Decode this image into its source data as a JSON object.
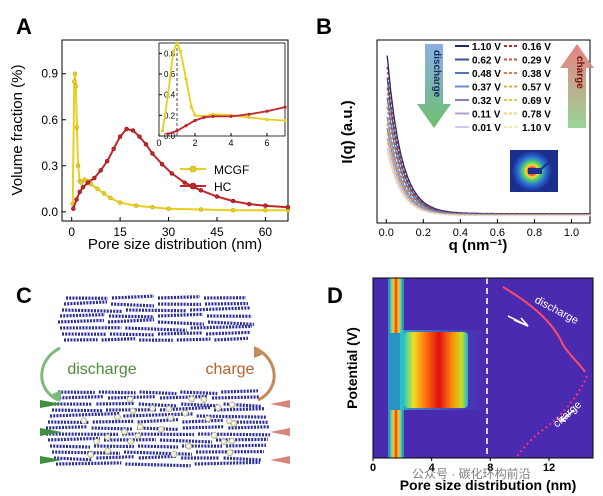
{
  "panels": {
    "A": {
      "letter": "A",
      "ylabel": "Volume fraction (%)",
      "xlabel": "Pore size distribution (nm)",
      "legend": [
        {
          "name": "MCGF",
          "color": "#e8cf1e"
        },
        {
          "name": "HC",
          "color": "#c0282c"
        }
      ],
      "inset": {
        "xticks": [
          "0",
          "2",
          "4",
          "6"
        ],
        "yticks": [
          "0.0",
          "0.2",
          "0.4",
          "0.6",
          "0.8"
        ]
      }
    },
    "B": {
      "letter": "B",
      "ylabel": "I(q) (a.u.)",
      "xlabel": "q (nm⁻¹)",
      "discharge_label": "discharge",
      "charge_label": "charge",
      "discharge_voltages": [
        "1.10 V",
        "0.62 V",
        "0.48 V",
        "0.37 V",
        "0.32 V",
        "0.11 V",
        "0.01 V"
      ],
      "charge_voltages": [
        "0.16 V",
        "0.29 V",
        "0.38 V",
        "0.57 V",
        "0.69 V",
        "0.78 V",
        "1.10 V"
      ],
      "discharge_colors": [
        "#1a2a6c",
        "#2f5597",
        "#4a78b8",
        "#6b8fc8",
        "#8c7dc0",
        "#b79dd6",
        "#d7c8ea"
      ],
      "charge_colors": [
        "#c0282c",
        "#d2533a",
        "#e07d3f",
        "#e8a443",
        "#e8c54a",
        "#eed878",
        "#f2e6a8"
      ]
    },
    "C": {
      "letter": "C",
      "discharge_label": "discharge",
      "charge_label": "charge"
    },
    "D": {
      "letter": "D",
      "ylabel": "Potential (V)",
      "xlabel": "Pore size distribution (nm)",
      "discharge_label": "discharge",
      "charge_label": "charge",
      "xticks": [
        "0",
        "4",
        "8",
        "12"
      ]
    }
  },
  "watermark": "公众号 · 碳化环构前沿",
  "chart_data": [
    {
      "panel": "A",
      "type": "line",
      "title": "",
      "xlabel": "Pore size distribution (nm)",
      "ylabel": "Volume fraction (%)",
      "xlim": [
        -3,
        67
      ],
      "ylim": [
        -0.06,
        1.12
      ],
      "xticks": [
        0,
        15,
        30,
        45,
        60
      ],
      "yticks": [
        0.0,
        0.3,
        0.6,
        0.9
      ],
      "series": [
        {
          "name": "MCGF",
          "color": "#e8cf1e",
          "x": [
            0.3,
            0.8,
            1.0,
            1.3,
            1.6,
            2.0,
            2.5,
            3.0,
            4.0,
            5.0,
            6.0,
            8.0,
            10,
            12,
            15,
            20,
            25,
            30,
            40,
            50,
            60,
            67
          ],
          "y": [
            0.05,
            0.85,
            0.9,
            0.82,
            0.55,
            0.3,
            0.2,
            0.19,
            0.21,
            0.2,
            0.18,
            0.15,
            0.12,
            0.09,
            0.06,
            0.04,
            0.03,
            0.02,
            0.015,
            0.01,
            0.01,
            0.01
          ]
        },
        {
          "name": "HC",
          "color": "#c0282c",
          "x": [
            0.5,
            1.5,
            2.5,
            3.5,
            5,
            7,
            9,
            11,
            13,
            15,
            17,
            19,
            21,
            23,
            25,
            28,
            31,
            35,
            40,
            45,
            50,
            55,
            60,
            67
          ],
          "y": [
            0.02,
            0.08,
            0.13,
            0.16,
            0.19,
            0.22,
            0.27,
            0.33,
            0.41,
            0.49,
            0.54,
            0.53,
            0.49,
            0.44,
            0.38,
            0.31,
            0.25,
            0.19,
            0.14,
            0.1,
            0.07,
            0.05,
            0.04,
            0.03
          ]
        }
      ]
    },
    {
      "panel": "A-inset",
      "type": "line",
      "xlim": [
        0,
        7
      ],
      "ylim": [
        0,
        0.9
      ],
      "series": [
        {
          "name": "MCGF",
          "x": [
            0.2,
            0.5,
            0.8,
            1.0,
            1.2,
            1.5,
            1.8,
            2.0,
            2.5,
            3.0,
            4.0,
            5.0,
            6.0,
            7.0
          ],
          "y": [
            0.05,
            0.4,
            0.82,
            0.9,
            0.82,
            0.55,
            0.28,
            0.2,
            0.19,
            0.21,
            0.2,
            0.18,
            0.16,
            0.15
          ]
        },
        {
          "name": "HC",
          "x": [
            0.5,
            1.0,
            1.5,
            2.0,
            2.5,
            3.0,
            4.0,
            5.0,
            6.0,
            7.0
          ],
          "y": [
            0.02,
            0.05,
            0.1,
            0.15,
            0.18,
            0.19,
            0.19,
            0.21,
            0.24,
            0.28
          ]
        }
      ]
    },
    {
      "panel": "B",
      "type": "line",
      "xlabel": "q (nm⁻¹)",
      "ylabel": "I(q) (a.u.)",
      "xlim": [
        -0.05,
        1.1
      ],
      "xticks": [
        0.0,
        0.2,
        0.4,
        0.6,
        0.8,
        1.0
      ],
      "amplitudes": [
        1.0,
        0.93,
        0.86,
        0.8,
        0.74,
        0.68,
        0.62,
        0.58,
        0.55,
        0.52,
        0.49,
        0.46,
        0.43,
        0.4
      ]
    },
    {
      "panel": "D",
      "type": "heatmap",
      "xlabel": "Pore size distribution (nm)",
      "ylabel": "Potential (V)",
      "xlim": [
        0,
        15
      ],
      "xticks": [
        0,
        4,
        8,
        12
      ]
    }
  ]
}
